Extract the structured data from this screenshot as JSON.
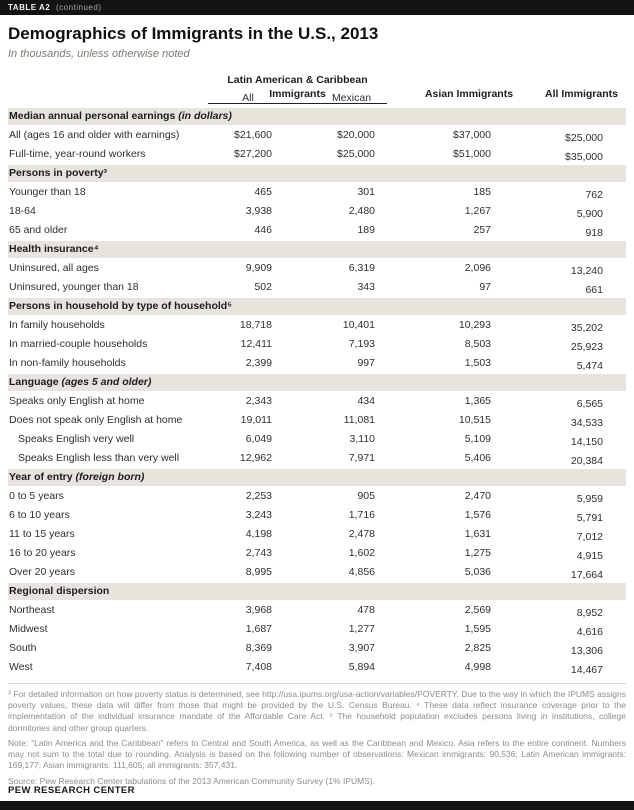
{
  "page": {
    "tag": "TABLE A2",
    "tag_continued": "(continued)",
    "title": "Demographics of Immigrants in the U.S., 2013",
    "subtitle": "In thousands, unless otherwise noted",
    "footnotes": "³ For detailed information on how poverty status is determined, see http://usa.ipums.org/usa-action/variables/POVERTY. Due to the way in which the IPUMS assigns poverty values, these data will differ from those that might be provided by the U.S. Census Bureau. ⁴ These data reflect insurance coverage prior to the implementation of the individual insurance mandate of the Affordable Care Act. ⁵ The household population excludes persons living in institutions, college dormitories and other group quarters.",
    "note": "Note: “Latin America and the Caribbean” refers to Central and South America, as well as the Caribbean and Mexico. Asia refers to the entire continent. Numbers may not sum to the total due to rounding. Analysis is based on the following number of observations: Mexican immigrants: 90,536; Latin American immigrants: 169,177; Asian immigrants: 111,605; all immigrants: 357,431.",
    "source": "Source: Pew Research Center tabulations of the 2013 American Community Survey (1% IPUMS).",
    "brand": "PEW RESEARCH CENTER"
  },
  "colors": {
    "top_bar": "#131313",
    "section_row_bg": "#e7e4dd",
    "body_text": "#2e2e2e",
    "muted_notes": "#8e8c86",
    "subtitle": "#7d7a72"
  },
  "chart_data": {
    "type": "table",
    "title": "Demographics of Immigrants in the U.S., 2013",
    "units": "In thousands, unless otherwise noted",
    "column_groups": [
      {
        "label": "Latin American & Caribbean Immigrants",
        "span": 2,
        "underlined": true
      },
      {
        "label": "Asian Immigrants",
        "span": 1,
        "underlined": false
      },
      {
        "label": "All Immigrants",
        "span": 1,
        "underlined": false
      }
    ],
    "sub_columns": [
      "All",
      "Mexican"
    ],
    "columns": [
      "Latin American & Caribbean — All",
      "Latin American & Caribbean — Mexican",
      "Asian Immigrants",
      "All Immigrants"
    ],
    "sections": [
      {
        "label": "Median annual personal earnings",
        "label_note": "(in dollars)",
        "rows": [
          {
            "label": "All (ages 16 and older with earnings)",
            "values": [
              "$21,600",
              "$20,000",
              "$37,000",
              "$25,000"
            ]
          },
          {
            "label": "Full-time, year-round workers",
            "values": [
              "$27,200",
              "$25,000",
              "$51,000",
              "$35,000"
            ]
          }
        ]
      },
      {
        "label": "Persons in poverty³",
        "label_note": "",
        "rows": [
          {
            "label": "Younger than 18",
            "values": [
              "465",
              "301",
              "185",
              "762"
            ]
          },
          {
            "label": "18-64",
            "values": [
              "3,938",
              "2,480",
              "1,267",
              "5,900"
            ]
          },
          {
            "label": "65 and older",
            "values": [
              "446",
              "189",
              "257",
              "918"
            ]
          }
        ]
      },
      {
        "label": "Health insurance⁴",
        "label_note": "",
        "rows": [
          {
            "label": "Uninsured, all ages",
            "values": [
              "9,909",
              "6,319",
              "2,096",
              "13,240"
            ]
          },
          {
            "label": "Uninsured, younger than 18",
            "values": [
              "502",
              "343",
              "97",
              "661"
            ]
          }
        ]
      },
      {
        "label": "Persons in household by type of household⁵",
        "label_note": "",
        "rows": [
          {
            "label": "In family households",
            "values": [
              "18,718",
              "10,401",
              "10,293",
              "35,202"
            ]
          },
          {
            "label": "In married-couple households",
            "values": [
              "12,411",
              "7,193",
              "8,503",
              "25,923"
            ]
          },
          {
            "label": "In non-family households",
            "values": [
              "2,399",
              "997",
              "1,503",
              "5,474"
            ]
          }
        ]
      },
      {
        "label": "Language",
        "label_note": "(ages 5 and older)",
        "rows": [
          {
            "label": "Speaks only English at home",
            "values": [
              "2,343",
              "434",
              "1,365",
              "6,565"
            ]
          },
          {
            "label": "Does not speak only English at home",
            "values": [
              "19,011",
              "11,081",
              "10,515",
              "34,533"
            ]
          },
          {
            "label": "Speaks English very well",
            "indent": true,
            "values": [
              "6,049",
              "3,110",
              "5,109",
              "14,150"
            ]
          },
          {
            "label": "Speaks English less than very well",
            "indent": true,
            "values": [
              "12,962",
              "7,971",
              "5,406",
              "20,384"
            ]
          }
        ]
      },
      {
        "label": "Year of entry",
        "label_note": "(foreign born)",
        "rows": [
          {
            "label": "0 to 5 years",
            "values": [
              "2,253",
              "905",
              "2,470",
              "5,959"
            ]
          },
          {
            "label": "6 to 10 years",
            "values": [
              "3,243",
              "1,716",
              "1,576",
              "5,791"
            ]
          },
          {
            "label": "11 to 15 years",
            "values": [
              "4,198",
              "2,478",
              "1,631",
              "7,012"
            ]
          },
          {
            "label": "16 to 20 years",
            "values": [
              "2,743",
              "1,602",
              "1,275",
              "4,915"
            ]
          },
          {
            "label": "Over 20 years",
            "values": [
              "8,995",
              "4,856",
              "5,036",
              "17,664"
            ]
          }
        ]
      },
      {
        "label": "Regional dispersion",
        "label_note": "",
        "rows": [
          {
            "label": "Northeast",
            "values": [
              "3,968",
              "478",
              "2,569",
              "8,952"
            ]
          },
          {
            "label": "Midwest",
            "values": [
              "1,687",
              "1,277",
              "1,595",
              "4,616"
            ]
          },
          {
            "label": "South",
            "values": [
              "8,369",
              "3,907",
              "2,825",
              "13,306"
            ]
          },
          {
            "label": "West",
            "values": [
              "7,408",
              "5,894",
              "4,998",
              "14,467"
            ]
          }
        ]
      }
    ]
  }
}
